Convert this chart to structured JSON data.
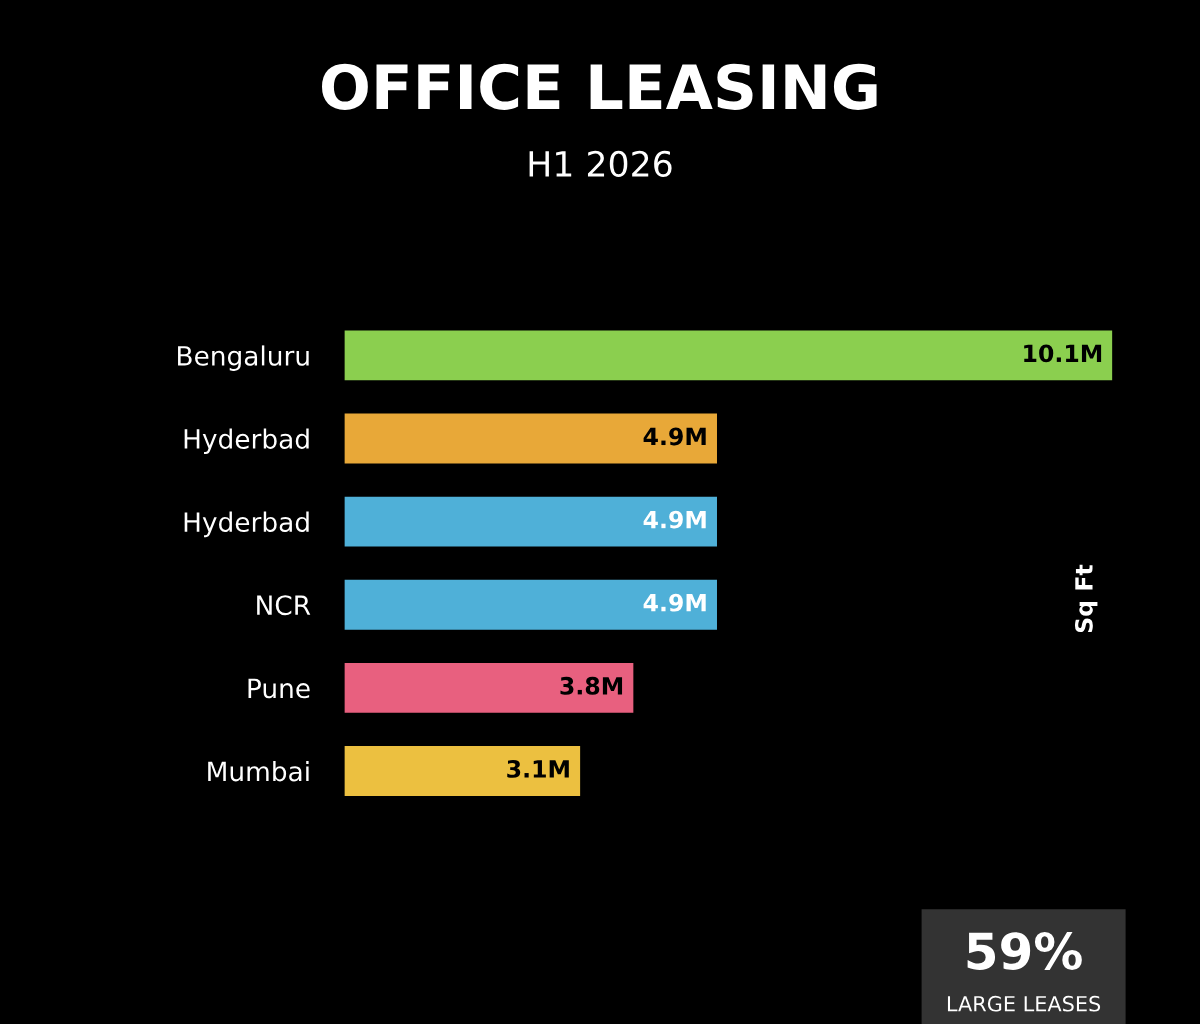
{
  "chart_data": {
    "type": "bar",
    "orientation": "horizontal",
    "title": "OFFICE LEASING",
    "subtitle": "H1 2026",
    "categories": [
      "Bengaluru",
      "Hyderbad",
      "Hyderbad",
      "NCR",
      "Pune",
      "Mumbai"
    ],
    "values": [
      10.1,
      4.9,
      4.9,
      4.9,
      3.8,
      3.1
    ],
    "value_labels": [
      "10.1M",
      "4.9M",
      "4.9M",
      "4.9M",
      "3.8M",
      "3.1M"
    ],
    "colors": [
      "#8bcf4f",
      "#e8a838",
      "#4fb0d8",
      "#4fb0d8",
      "#e8607f",
      "#ecc040"
    ],
    "annotations": [
      "Sq Ft",
      "59%",
      "LARGE LEASES"
    ]
  }
}
